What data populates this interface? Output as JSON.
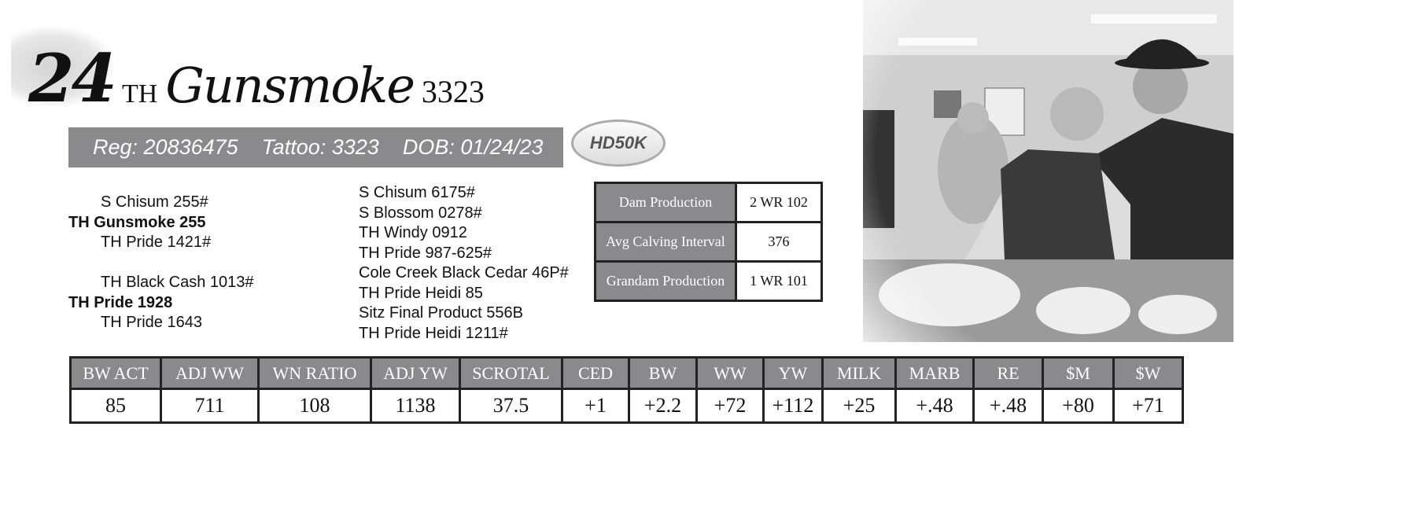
{
  "lot": {
    "number": "24",
    "prefix": "TH",
    "name": "Gunsmoke",
    "tag": "3323"
  },
  "regbar": {
    "reg": "Reg: 20836475",
    "tattoo": "Tattoo: 3323",
    "dob": "DOB: 01/24/23"
  },
  "badge": "HD50K",
  "pedigree_left": [
    {
      "text": "S Chisum 255#",
      "bold": false
    },
    {
      "text": "TH Gunsmoke 255",
      "bold": true
    },
    {
      "text": "TH Pride 1421#",
      "bold": false
    },
    {
      "text": "",
      "bold": false
    },
    {
      "text": "TH Black Cash 1013#",
      "bold": false
    },
    {
      "text": "TH Pride 1928",
      "bold": true
    },
    {
      "text": "TH Pride 1643",
      "bold": false
    }
  ],
  "pedigree_right": [
    "S Chisum 6175#",
    "S Blossom 0278#",
    "TH Windy 0912",
    "TH Pride 987-625#",
    "Cole Creek Black Cedar 46P#",
    "TH Pride Heidi 85",
    "Sitz Final Product 556B",
    "TH Pride Heidi 1211#"
  ],
  "production": [
    {
      "label": "Dam Production",
      "value": "2 WR 102"
    },
    {
      "label": "Avg Calving Interval",
      "value": "376"
    },
    {
      "label": "Grandam Production",
      "value": "1 WR 101"
    }
  ],
  "stats": {
    "headers": [
      "BW ACT",
      "ADJ WW",
      "WN RATIO",
      "ADJ YW",
      "SCROTAL",
      "CED",
      "BW",
      "WW",
      "YW",
      "MILK",
      "MARB",
      "RE",
      "$M",
      "$W"
    ],
    "values": [
      "85",
      "711",
      "108",
      "1138",
      "37.5",
      "+1",
      "+2.2",
      "+72",
      "+112",
      "+25",
      "+.48",
      "+.48",
      "+80",
      "+71"
    ]
  }
}
